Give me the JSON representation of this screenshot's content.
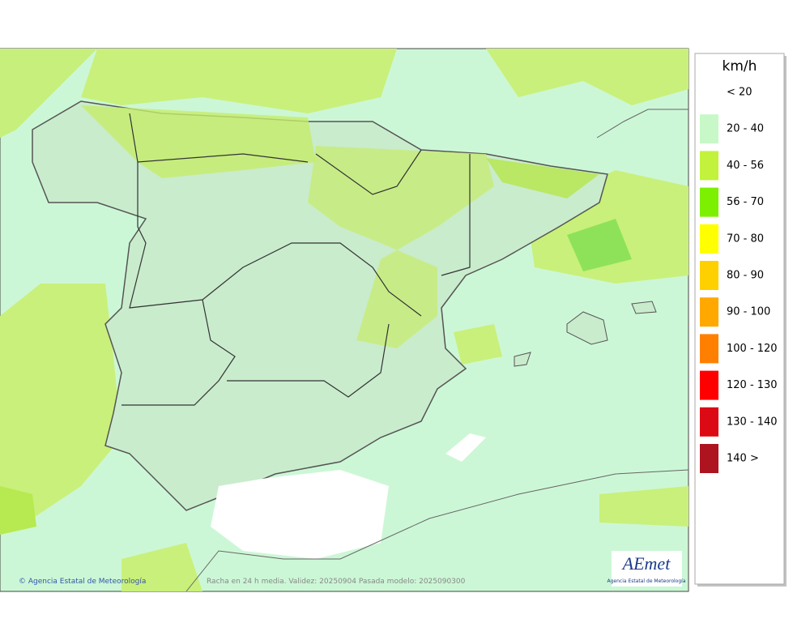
{
  "legend": {
    "title": "km/h",
    "items": [
      {
        "label": "< 20"
      },
      {
        "label": "20 - 40",
        "color": "#c8f8c8"
      },
      {
        "label": "40 - 56",
        "color": "#c2f23c"
      },
      {
        "label": "56 - 70",
        "color": "#7cf000"
      },
      {
        "label": "70 - 80",
        "color": "#ffff00"
      },
      {
        "label": "80 - 90",
        "color": "#ffd000"
      },
      {
        "label": "90 - 100",
        "color": "#ffa800"
      },
      {
        "label": "100 - 120",
        "color": "#ff8000"
      },
      {
        "label": "120 - 130",
        "color": "#ff0000"
      },
      {
        "label": "130 - 140",
        "color": "#dc0a14"
      },
      {
        "label": "140 >",
        "color": "#ad1420"
      }
    ]
  },
  "footer": {
    "credit": "© Agencia Estatal de Meteorología",
    "caption": "Racha en 24 h media. Validez: 20250904 Pasada modelo: 2025090300"
  },
  "logo": {
    "name": "AEmet",
    "subtitle": "Agencia Estatal de Meteorología"
  }
}
